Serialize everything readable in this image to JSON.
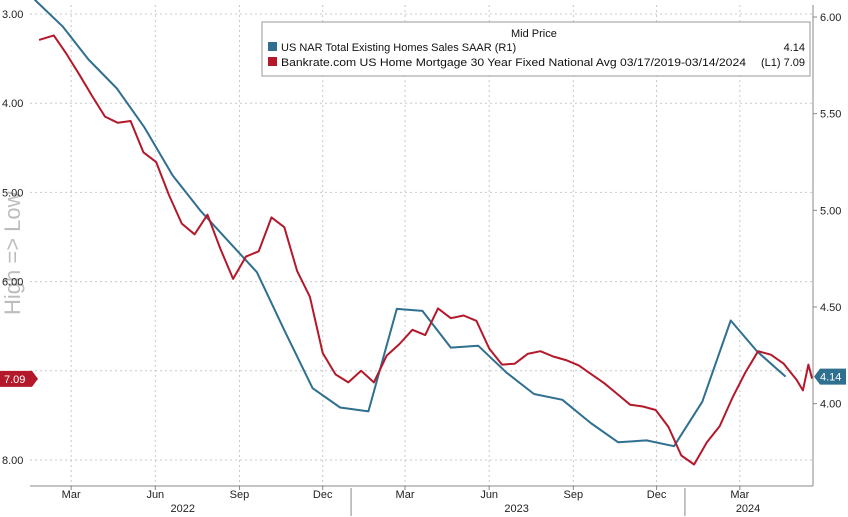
{
  "chart_data": {
    "type": "line",
    "legend": {
      "title": "Mid Price",
      "placement": "top-right",
      "entries": [
        {
          "label": "US NAR Total Existing Homes Sales SAAR  (R1)",
          "value": "4.14",
          "color": "#2f6f8f"
        },
        {
          "label": "Bankrate.com US Home Mortgage 30 Year Fixed National Avg 03/17/2019-03/14/2024",
          "value": "(L1) 7.09",
          "color": "#b3192a"
        }
      ]
    },
    "watermark": "High => Low",
    "x_axis": {
      "month_ticks": [
        "Mar",
        "Jun",
        "Sep",
        "Dec",
        "Mar",
        "Jun",
        "Sep",
        "Dec",
        "Mar"
      ],
      "month_tick_dates": [
        "2022-03-01",
        "2022-06-01",
        "2022-09-01",
        "2022-12-01",
        "2023-03-01",
        "2023-06-01",
        "2023-09-01",
        "2023-12-01",
        "2024-03-01"
      ],
      "years": [
        "2022",
        "2023",
        "2024"
      ],
      "range": [
        "2022-01-15",
        "2024-05-20"
      ]
    },
    "left_axis": {
      "inverted": true,
      "range": [
        3.0,
        8.0
      ],
      "ticks": [
        "3.00",
        "4.00",
        "5.00",
        "6.00",
        "7.00",
        "8.00"
      ],
      "ticks_visible": [
        "3.00",
        "4.00",
        "5.00",
        "6.00",
        "",
        "8.00"
      ],
      "last_value_badge": "7.09"
    },
    "right_axis": {
      "range": [
        3.75,
        6.1
      ],
      "ticks": [
        "6.00",
        "5.50",
        "5.00",
        "4.50",
        "4.00"
      ],
      "last_value_badge": "4.14"
    },
    "grid": true,
    "series": [
      {
        "name": "US NAR Total Existing Homes Sales SAAR",
        "axis": "right",
        "color": "#2f6f8f",
        "points": [
          [
            "2022-01-20",
            6.09
          ],
          [
            "2022-02-20",
            5.95
          ],
          [
            "2022-03-20",
            5.78
          ],
          [
            "2022-04-20",
            5.63
          ],
          [
            "2022-05-20",
            5.43
          ],
          [
            "2022-06-20",
            5.18
          ],
          [
            "2022-07-20",
            5.0
          ],
          [
            "2022-08-20",
            4.84
          ],
          [
            "2022-09-20",
            4.68
          ],
          [
            "2022-10-20",
            4.38
          ],
          [
            "2022-11-20",
            4.08
          ],
          [
            "2022-12-20",
            3.98
          ],
          [
            "2023-01-20",
            3.96
          ],
          [
            "2023-02-20",
            4.49
          ],
          [
            "2023-03-20",
            4.48
          ],
          [
            "2023-04-20",
            4.29
          ],
          [
            "2023-05-20",
            4.3
          ],
          [
            "2023-06-20",
            4.16
          ],
          [
            "2023-07-20",
            4.05
          ],
          [
            "2023-08-20",
            4.02
          ],
          [
            "2023-09-20",
            3.9
          ],
          [
            "2023-10-20",
            3.8
          ],
          [
            "2023-11-20",
            3.81
          ],
          [
            "2023-12-20",
            3.78
          ],
          [
            "2024-01-20",
            4.01
          ],
          [
            "2024-02-20",
            4.43
          ],
          [
            "2024-03-20",
            4.27
          ],
          [
            "2024-04-20",
            4.14
          ]
        ]
      },
      {
        "name": "Bankrate.com US Home Mortgage 30 Year Fixed National Avg",
        "axis": "left",
        "color": "#b3192a",
        "points": [
          [
            "2022-01-25",
            3.29
          ],
          [
            "2022-02-10",
            3.24
          ],
          [
            "2022-02-24",
            3.45
          ],
          [
            "2022-03-10",
            3.68
          ],
          [
            "2022-03-24",
            3.92
          ],
          [
            "2022-04-07",
            4.15
          ],
          [
            "2022-04-21",
            4.22
          ],
          [
            "2022-05-05",
            4.2
          ],
          [
            "2022-05-19",
            4.55
          ],
          [
            "2022-06-02",
            4.66
          ],
          [
            "2022-06-16",
            5.03
          ],
          [
            "2022-06-30",
            5.35
          ],
          [
            "2022-07-14",
            5.47
          ],
          [
            "2022-07-28",
            5.25
          ],
          [
            "2022-08-11",
            5.63
          ],
          [
            "2022-08-25",
            5.97
          ],
          [
            "2022-09-08",
            5.72
          ],
          [
            "2022-09-22",
            5.66
          ],
          [
            "2022-10-06",
            5.28
          ],
          [
            "2022-10-20",
            5.39
          ],
          [
            "2022-11-03",
            5.88
          ],
          [
            "2022-11-17",
            6.17
          ],
          [
            "2022-12-01",
            6.8
          ],
          [
            "2022-12-15",
            7.04
          ],
          [
            "2022-12-29",
            7.13
          ],
          [
            "2023-01-12",
            7.0
          ],
          [
            "2023-01-26",
            7.13
          ],
          [
            "2023-02-09",
            6.83
          ],
          [
            "2023-02-23",
            6.7
          ],
          [
            "2023-03-09",
            6.54
          ],
          [
            "2023-03-23",
            6.6
          ],
          [
            "2023-04-06",
            6.3
          ],
          [
            "2023-04-20",
            6.41
          ],
          [
            "2023-05-04",
            6.38
          ],
          [
            "2023-05-18",
            6.44
          ],
          [
            "2023-06-01",
            6.75
          ],
          [
            "2023-06-15",
            6.93
          ],
          [
            "2023-06-29",
            6.92
          ],
          [
            "2023-07-13",
            6.81
          ],
          [
            "2023-07-27",
            6.78
          ],
          [
            "2023-08-10",
            6.84
          ],
          [
            "2023-08-24",
            6.88
          ],
          [
            "2023-09-07",
            6.94
          ],
          [
            "2023-09-21",
            7.04
          ],
          [
            "2023-10-05",
            7.14
          ],
          [
            "2023-10-19",
            7.26
          ],
          [
            "2023-11-02",
            7.38
          ],
          [
            "2023-11-16",
            7.4
          ],
          [
            "2023-11-30",
            7.44
          ],
          [
            "2023-12-14",
            7.63
          ],
          [
            "2023-12-28",
            7.95
          ],
          [
            "2024-01-11",
            8.05
          ],
          [
            "2024-01-25",
            7.8
          ],
          [
            "2024-02-08",
            7.62
          ],
          [
            "2024-02-22",
            7.3
          ],
          [
            "2024-03-07",
            7.02
          ],
          [
            "2024-03-21",
            6.78
          ],
          [
            "2024-04-04",
            6.82
          ],
          [
            "2024-04-18",
            6.92
          ],
          [
            "2024-05-02",
            7.1
          ],
          [
            "2024-05-09",
            7.22
          ],
          [
            "2024-05-15",
            6.93
          ],
          [
            "2024-05-19",
            7.09
          ]
        ]
      }
    ]
  }
}
